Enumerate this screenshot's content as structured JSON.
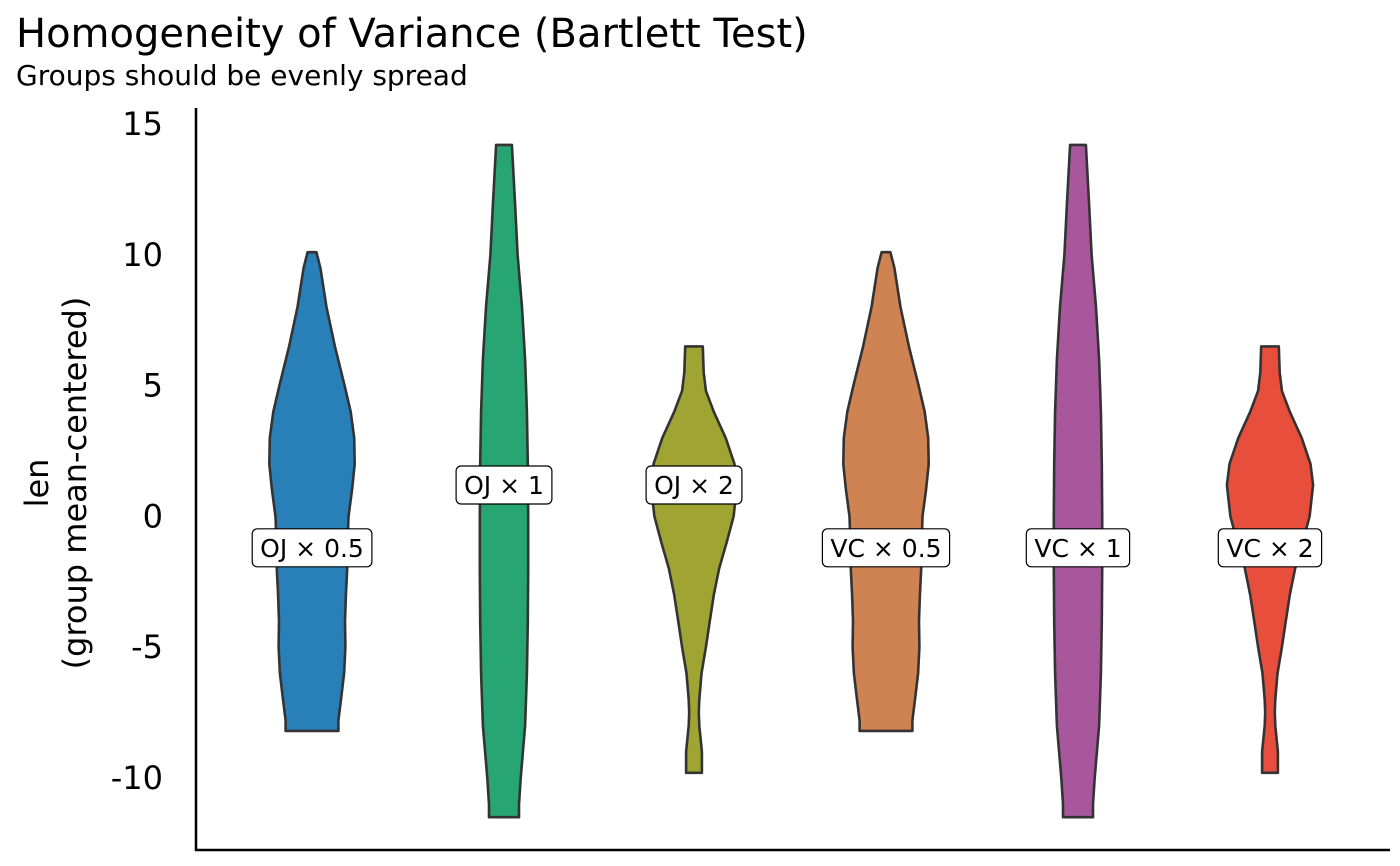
{
  "chart_data": {
    "type": "violin",
    "title": "Homogeneity of Variance (Bartlett Test)",
    "subtitle": "Groups should be evenly spread",
    "ylabel_line1": "len",
    "ylabel_line2": "(group mean-centered)",
    "ylim": [
      -12.5,
      15.5
    ],
    "yticks": [
      15,
      10,
      5,
      0,
      -5,
      -10
    ],
    "ytick_labels": [
      "15",
      "10",
      "5",
      "0",
      "-5",
      "-10"
    ],
    "grid": false,
    "legend": "none",
    "groups": [
      {
        "label": "OJ × 0.5",
        "color": "#2980b9",
        "label_y": -1.2,
        "profile": [
          [
            10.1,
            0.1
          ],
          [
            9.5,
            0.19
          ],
          [
            8,
            0.33
          ],
          [
            6.5,
            0.52
          ],
          [
            5,
            0.74
          ],
          [
            4,
            0.88
          ],
          [
            3,
            0.96
          ],
          [
            2,
            0.97
          ],
          [
            1,
            0.91
          ],
          [
            0,
            0.83
          ],
          [
            -1,
            0.81
          ],
          [
            -2,
            0.8
          ],
          [
            -3,
            0.77
          ],
          [
            -4,
            0.75
          ],
          [
            -5,
            0.76
          ],
          [
            -6,
            0.73
          ],
          [
            -7,
            0.66
          ],
          [
            -7.8,
            0.6
          ],
          [
            -8.2,
            0.6
          ]
        ]
      },
      {
        "label": "OJ × 1",
        "color": "#27a572",
        "label_y": 1.2,
        "profile": [
          [
            14.2,
            0.18
          ],
          [
            12,
            0.25
          ],
          [
            10,
            0.31
          ],
          [
            8,
            0.41
          ],
          [
            6,
            0.48
          ],
          [
            4,
            0.52
          ],
          [
            2,
            0.54
          ],
          [
            0,
            0.55
          ],
          [
            -2,
            0.55
          ],
          [
            -4,
            0.54
          ],
          [
            -6,
            0.52
          ],
          [
            -8,
            0.48
          ],
          [
            -10,
            0.38
          ],
          [
            -11,
            0.34
          ],
          [
            -11.5,
            0.34
          ]
        ]
      },
      {
        "label": "OJ × 2",
        "color": "#a0a432",
        "label_y": 1.2,
        "profile": [
          [
            6.5,
            0.2
          ],
          [
            5.5,
            0.22
          ],
          [
            4.8,
            0.27
          ],
          [
            4,
            0.45
          ],
          [
            3,
            0.72
          ],
          [
            2,
            0.92
          ],
          [
            1.2,
            0.98
          ],
          [
            0,
            0.9
          ],
          [
            -1,
            0.74
          ],
          [
            -2,
            0.57
          ],
          [
            -3,
            0.45
          ],
          [
            -4,
            0.36
          ],
          [
            -5,
            0.27
          ],
          [
            -6,
            0.17
          ],
          [
            -7,
            0.12
          ],
          [
            -7.5,
            0.11
          ],
          [
            -8,
            0.12
          ],
          [
            -9,
            0.18
          ],
          [
            -9.8,
            0.18
          ]
        ]
      },
      {
        "label": "VC × 0.5",
        "color": "#d08352",
        "label_y": -1.2,
        "profile": [
          [
            10.1,
            0.1
          ],
          [
            9.5,
            0.19
          ],
          [
            8,
            0.33
          ],
          [
            6.5,
            0.52
          ],
          [
            5,
            0.74
          ],
          [
            4,
            0.88
          ],
          [
            3,
            0.96
          ],
          [
            2,
            0.97
          ],
          [
            1,
            0.91
          ],
          [
            0,
            0.83
          ],
          [
            -1,
            0.81
          ],
          [
            -2,
            0.8
          ],
          [
            -3,
            0.77
          ],
          [
            -4,
            0.75
          ],
          [
            -5,
            0.76
          ],
          [
            -6,
            0.73
          ],
          [
            -7,
            0.66
          ],
          [
            -7.8,
            0.6
          ],
          [
            -8.2,
            0.6
          ]
        ]
      },
      {
        "label": "VC × 1",
        "color": "#a8579c",
        "label_y": -1.2,
        "profile": [
          [
            14.2,
            0.18
          ],
          [
            12,
            0.25
          ],
          [
            10,
            0.31
          ],
          [
            8,
            0.41
          ],
          [
            6,
            0.48
          ],
          [
            4,
            0.52
          ],
          [
            2,
            0.54
          ],
          [
            0,
            0.55
          ],
          [
            -2,
            0.55
          ],
          [
            -4,
            0.54
          ],
          [
            -6,
            0.52
          ],
          [
            -8,
            0.48
          ],
          [
            -10,
            0.38
          ],
          [
            -11,
            0.34
          ],
          [
            -11.5,
            0.34
          ]
        ]
      },
      {
        "label": "VC × 2",
        "color": "#e74e3c",
        "label_y": -1.2,
        "profile": [
          [
            6.5,
            0.2
          ],
          [
            5.5,
            0.22
          ],
          [
            4.8,
            0.27
          ],
          [
            4,
            0.45
          ],
          [
            3,
            0.72
          ],
          [
            2,
            0.92
          ],
          [
            1.2,
            0.98
          ],
          [
            0,
            0.9
          ],
          [
            -1,
            0.74
          ],
          [
            -2,
            0.57
          ],
          [
            -3,
            0.45
          ],
          [
            -4,
            0.36
          ],
          [
            -5,
            0.27
          ],
          [
            -6,
            0.17
          ],
          [
            -7,
            0.12
          ],
          [
            -7.5,
            0.11
          ],
          [
            -8,
            0.12
          ],
          [
            -9,
            0.18
          ],
          [
            -9.8,
            0.18
          ]
        ]
      }
    ]
  }
}
